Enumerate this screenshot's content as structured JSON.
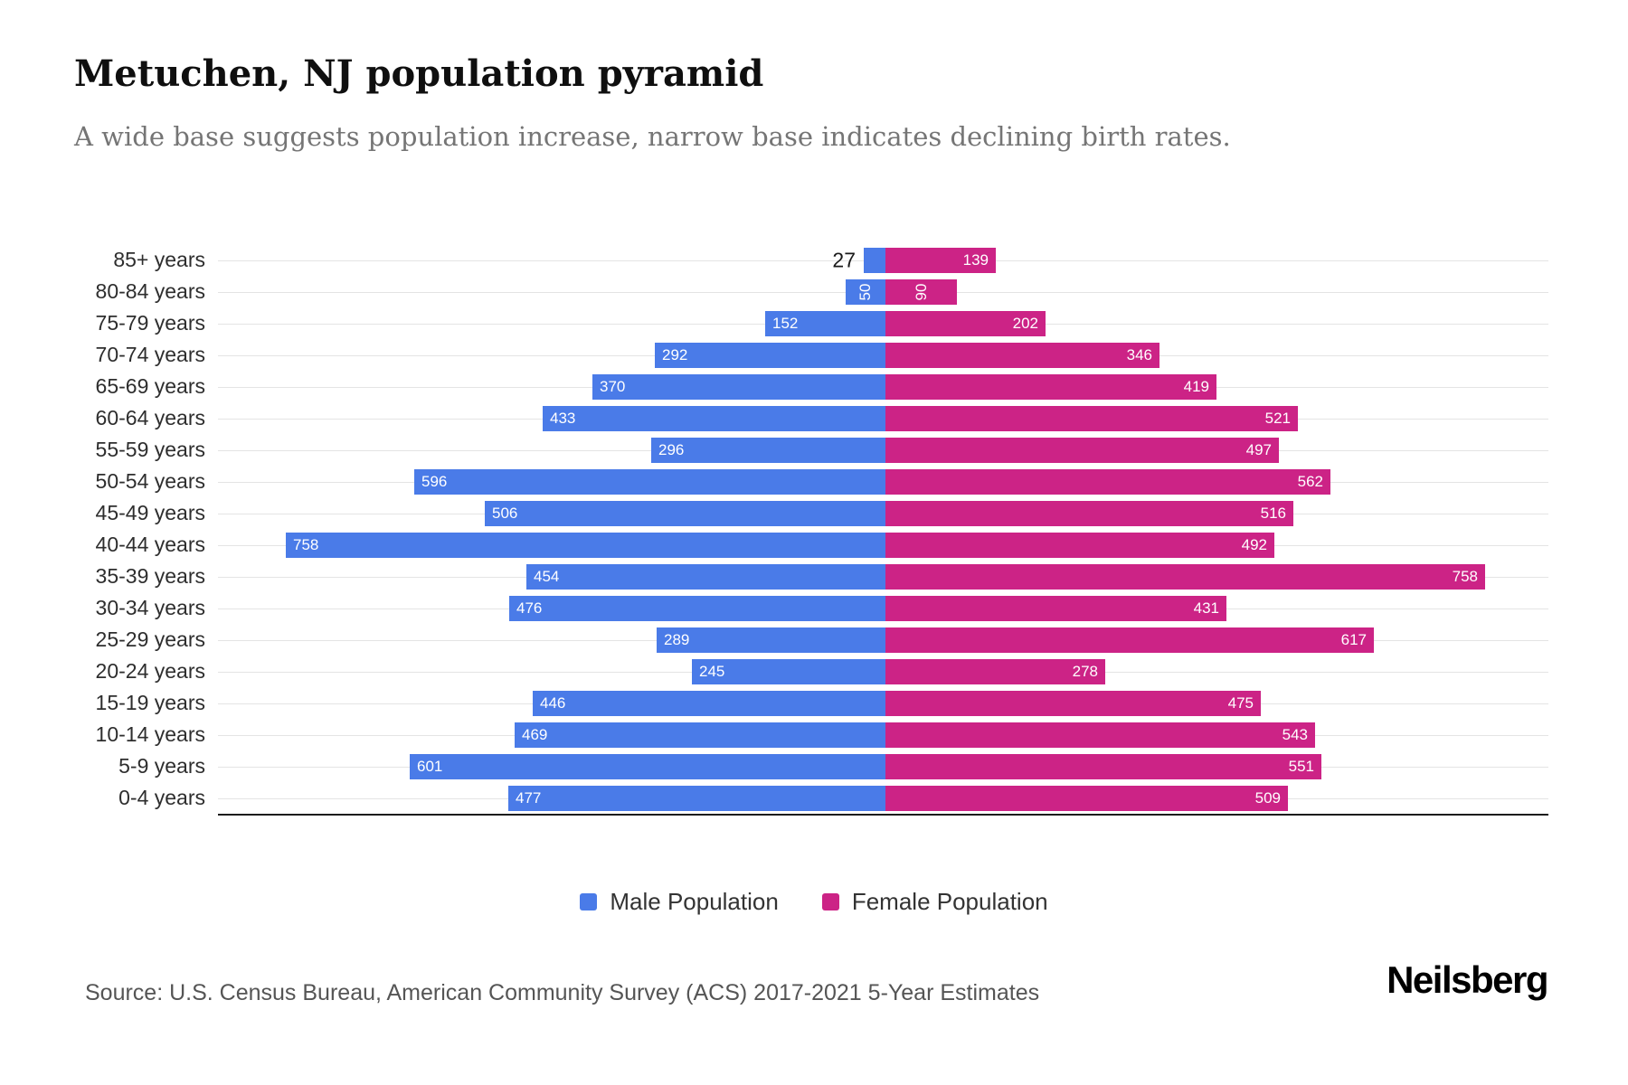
{
  "header": {
    "title": "Metuchen, NJ population pyramid",
    "subtitle": "A wide base suggests population increase, narrow base indicates declining birth rates."
  },
  "chart_data": {
    "type": "bar",
    "variant": "population-pyramid-diverging-horizontal",
    "title": "Metuchen, NJ population pyramid",
    "categories": [
      "85+ years",
      "80-84 years",
      "75-79 years",
      "70-74 years",
      "65-69 years",
      "60-64 years",
      "55-59 years",
      "50-54 years",
      "45-49 years",
      "40-44 years",
      "35-39 years",
      "30-34 years",
      "25-29 years",
      "20-24 years",
      "15-19 years",
      "10-14 years",
      "5-9 years",
      "0-4 years"
    ],
    "series": [
      {
        "name": "Male Population",
        "color": "#4a7be8",
        "values": [
          27,
          50,
          152,
          292,
          370,
          433,
          296,
          596,
          506,
          758,
          454,
          476,
          289,
          245,
          446,
          469,
          601,
          477
        ]
      },
      {
        "name": "Female Population",
        "color": "#cc2386",
        "values": [
          139,
          90,
          202,
          346,
          419,
          521,
          497,
          562,
          516,
          492,
          758,
          431,
          617,
          278,
          475,
          543,
          551,
          509
        ]
      }
    ],
    "xmax": 758,
    "grid": true,
    "legend_position": "bottom"
  },
  "legend": {
    "items": [
      {
        "label": "Male Population",
        "color": "#4a7be8"
      },
      {
        "label": "Female Population",
        "color": "#cc2386"
      }
    ]
  },
  "footer": {
    "source": "Source: U.S. Census Bureau, American Community Survey (ACS) 2017-2021 5-Year Estimates",
    "logo": "Neilsberg"
  }
}
